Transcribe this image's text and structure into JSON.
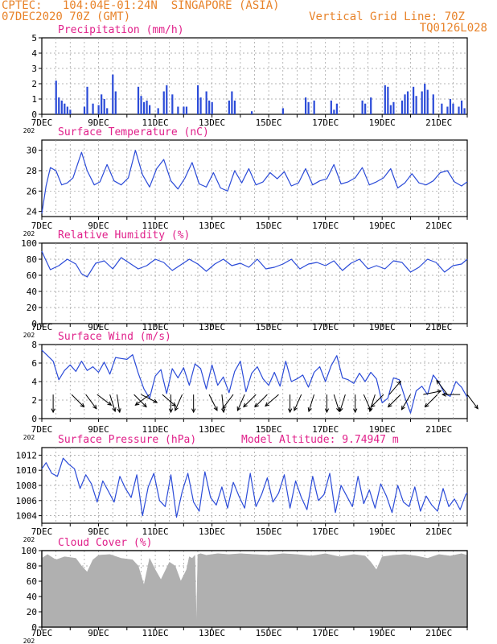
{
  "header": {
    "line1": "CPTEC:   104:04E-01:24N  SINGAPORE (ASIA)",
    "line2": "07DEC2020 70Z (GMT)",
    "grid_note": "Vertical Grid Line: 70Z",
    "run_code": "TQ0126L028",
    "model_altitude": "Model Altitude: 9.74947 m",
    "year_label": "202"
  },
  "colors": {
    "header": "#e8832a",
    "panel_title": "#e0208a",
    "series_line": "#2b4bd8",
    "precip_bar": "#2b4bd8",
    "wind_arrow": "#000000",
    "cloud_fill": "#b0b0b0",
    "grid": "#9a9a9a"
  },
  "chart_data": [
    {
      "type": "bar",
      "title": "Precipitation (mm/h)",
      "x_tick_labels": [
        "7DEC",
        "9DEC",
        "11DEC",
        "13DEC",
        "15DEC",
        "17DEC",
        "19DEC",
        "21DEC"
      ],
      "x_range_days": [
        7,
        22
      ],
      "ylim": [
        0,
        5
      ],
      "y_ticks": [
        0,
        1,
        2,
        3,
        4,
        5
      ],
      "x": [
        7.5,
        7.6,
        7.7,
        7.8,
        7.9,
        8.0,
        8.5,
        8.6,
        8.8,
        9.0,
        9.1,
        9.2,
        9.3,
        9.5,
        9.6,
        10.4,
        10.5,
        10.6,
        10.7,
        10.8,
        11.1,
        11.3,
        11.4,
        11.6,
        11.8,
        12.0,
        12.1,
        12.5,
        12.6,
        12.8,
        12.9,
        13.0,
        13.6,
        13.7,
        13.8,
        14.4,
        15.5,
        16.3,
        16.4,
        16.6,
        17.2,
        17.3,
        17.4,
        18.3,
        18.4,
        18.6,
        19.1,
        19.2,
        19.3,
        19.4,
        19.7,
        19.8,
        19.9,
        20.1,
        20.2,
        20.4,
        20.5,
        20.6,
        20.8,
        21.1,
        21.3,
        21.4,
        21.5,
        21.7,
        21.8,
        21.9
      ],
      "values": [
        2.2,
        1.1,
        0.9,
        0.7,
        0.5,
        0.3,
        0.5,
        1.8,
        0.7,
        0.6,
        1.3,
        1.0,
        0.4,
        2.6,
        1.5,
        1.8,
        1.2,
        0.8,
        0.9,
        0.6,
        0.4,
        1.5,
        1.9,
        1.3,
        0.5,
        0.5,
        0.5,
        1.9,
        1.1,
        1.5,
        0.9,
        0.8,
        0.9,
        1.5,
        0.9,
        0.2,
        0.4,
        1.1,
        0.8,
        0.9,
        0.9,
        0.3,
        0.7,
        0.9,
        0.7,
        1.1,
        1.9,
        1.8,
        0.6,
        0.8,
        0.9,
        1.3,
        1.5,
        1.8,
        1.2,
        1.5,
        2.0,
        1.6,
        1.3,
        0.7,
        0.5,
        1.0,
        0.7,
        0.5,
        0.9,
        0.4
      ]
    },
    {
      "type": "line",
      "title": "Surface Temperature (nC)",
      "x_tick_labels": [
        "7DEC",
        "9DEC",
        "11DEC",
        "13DEC",
        "15DEC",
        "17DEC",
        "19DEC",
        "21DEC"
      ],
      "x_range_days": [
        7,
        22
      ],
      "ylim": [
        23.5,
        31
      ],
      "y_ticks": [
        24,
        26,
        28,
        30
      ],
      "x": [
        7.0,
        7.15,
        7.3,
        7.5,
        7.7,
        7.9,
        8.1,
        8.4,
        8.6,
        8.85,
        9.05,
        9.3,
        9.55,
        9.8,
        10.05,
        10.3,
        10.55,
        10.8,
        11.05,
        11.3,
        11.55,
        11.8,
        12.05,
        12.3,
        12.55,
        12.8,
        13.05,
        13.3,
        13.55,
        13.8,
        14.05,
        14.3,
        14.55,
        14.8,
        15.05,
        15.3,
        15.55,
        15.8,
        16.05,
        16.3,
        16.55,
        16.8,
        17.05,
        17.3,
        17.55,
        17.8,
        18.05,
        18.3,
        18.55,
        18.8,
        19.05,
        19.3,
        19.55,
        19.8,
        20.05,
        20.3,
        20.55,
        20.8,
        21.05,
        21.3,
        21.55,
        21.8,
        22.0
      ],
      "values": [
        23.8,
        26.5,
        28.3,
        28.0,
        26.6,
        26.8,
        27.3,
        29.8,
        28.0,
        26.6,
        26.9,
        28.6,
        27.0,
        26.6,
        27.3,
        30.0,
        27.6,
        26.4,
        28.2,
        29.1,
        27.0,
        26.2,
        27.3,
        28.8,
        26.7,
        26.4,
        27.8,
        26.3,
        26.0,
        28.0,
        26.8,
        28.2,
        26.6,
        26.9,
        27.8,
        27.2,
        27.9,
        26.5,
        26.8,
        28.2,
        26.6,
        27.0,
        27.2,
        28.6,
        26.7,
        26.9,
        27.3,
        28.3,
        26.6,
        26.9,
        27.3,
        28.2,
        26.3,
        26.8,
        27.7,
        26.8,
        26.6,
        27.0,
        27.8,
        28.0,
        26.9,
        26.5,
        26.9
      ]
    },
    {
      "type": "line",
      "title": "Relative Humidity (%)",
      "x_tick_labels": [
        "7DEC",
        "9DEC",
        "11DEC",
        "13DEC",
        "15DEC",
        "17DEC",
        "19DEC",
        "21DEC"
      ],
      "x_range_days": [
        7,
        22
      ],
      "ylim": [
        0,
        100
      ],
      "y_ticks": [
        0,
        20,
        40,
        60,
        80,
        100
      ],
      "x": [
        7.0,
        7.1,
        7.3,
        7.6,
        7.9,
        8.2,
        8.4,
        8.6,
        8.9,
        9.2,
        9.5,
        9.8,
        10.1,
        10.4,
        10.7,
        11.0,
        11.3,
        11.6,
        11.9,
        12.2,
        12.5,
        12.8,
        13.1,
        13.4,
        13.7,
        14.0,
        14.3,
        14.6,
        14.9,
        15.2,
        15.5,
        15.8,
        16.1,
        16.4,
        16.7,
        17.0,
        17.3,
        17.6,
        17.9,
        18.2,
        18.5,
        18.8,
        19.1,
        19.4,
        19.7,
        20.0,
        20.3,
        20.6,
        20.9,
        21.2,
        21.5,
        21.8,
        22.0
      ],
      "values": [
        90,
        82,
        67,
        72,
        80,
        74,
        62,
        58,
        75,
        78,
        68,
        82,
        75,
        68,
        72,
        80,
        76,
        66,
        73,
        80,
        74,
        65,
        74,
        80,
        72,
        75,
        70,
        80,
        68,
        70,
        74,
        80,
        68,
        74,
        76,
        72,
        78,
        66,
        75,
        80,
        68,
        72,
        68,
        78,
        76,
        64,
        70,
        80,
        76,
        64,
        72,
        74,
        80
      ]
    },
    {
      "type": "line",
      "title": "Surface Wind (m/s)",
      "x_tick_labels": [
        "7DEC",
        "9DEC",
        "11DEC",
        "13DEC",
        "15DEC",
        "17DEC",
        "19DEC",
        "21DEC"
      ],
      "x_range_days": [
        7,
        22
      ],
      "ylim": [
        0,
        8
      ],
      "y_ticks": [
        0,
        2,
        4,
        6,
        8
      ],
      "x": [
        7.0,
        7.2,
        7.4,
        7.6,
        7.8,
        8.0,
        8.2,
        8.4,
        8.6,
        8.8,
        9.0,
        9.2,
        9.4,
        9.6,
        9.8,
        10.0,
        10.2,
        10.4,
        10.6,
        10.8,
        11.0,
        11.2,
        11.4,
        11.6,
        11.8,
        12.0,
        12.2,
        12.4,
        12.6,
        12.8,
        13.0,
        13.2,
        13.4,
        13.6,
        13.8,
        14.0,
        14.2,
        14.4,
        14.6,
        14.8,
        15.0,
        15.2,
        15.4,
        15.6,
        15.8,
        16.0,
        16.2,
        16.4,
        16.6,
        16.8,
        17.0,
        17.2,
        17.4,
        17.6,
        17.8,
        18.0,
        18.2,
        18.4,
        18.6,
        18.8,
        19.0,
        19.2,
        19.4,
        19.6,
        19.8,
        20.0,
        20.2,
        20.4,
        20.6,
        20.8,
        21.0,
        21.2,
        21.4,
        21.6,
        21.8,
        22.0
      ],
      "values": [
        7.4,
        6.8,
        6.2,
        4.2,
        5.2,
        5.8,
        5.1,
        6.2,
        5.2,
        5.6,
        5.0,
        6.1,
        4.8,
        6.6,
        6.5,
        6.4,
        6.9,
        4.9,
        3.2,
        2.2,
        4.6,
        5.3,
        2.7,
        5.4,
        4.4,
        5.5,
        3.6,
        5.9,
        5.4,
        3.2,
        5.8,
        3.6,
        4.5,
        2.8,
        5.1,
        6.2,
        2.9,
        4.9,
        5.6,
        4.3,
        3.6,
        5.0,
        3.5,
        6.2,
        4.0,
        4.3,
        4.7,
        3.4,
        5.0,
        5.6,
        4.0,
        5.7,
        6.8,
        4.4,
        4.2,
        3.8,
        4.9,
        4.0,
        5.0,
        4.3,
        1.7,
        2.2,
        4.4,
        4.2,
        2.3,
        0.6,
        3.0,
        3.5,
        2.6,
        4.7,
        3.9,
        2.7,
        2.4,
        4.0,
        3.4,
        2.3
      ]
    },
    {
      "type": "line",
      "title": "Surface Pressure (hPa)",
      "x_tick_labels": [
        "7DEC",
        "9DEC",
        "11DEC",
        "13DEC",
        "15DEC",
        "17DEC",
        "19DEC",
        "21DEC"
      ],
      "x_range_days": [
        7,
        22
      ],
      "ylim": [
        1003,
        1013
      ],
      "y_ticks": [
        1004,
        1006,
        1008,
        1010,
        1012
      ],
      "x": [
        7.0,
        7.15,
        7.35,
        7.55,
        7.75,
        7.95,
        8.15,
        8.35,
        8.55,
        8.75,
        8.95,
        9.15,
        9.35,
        9.55,
        9.75,
        9.95,
        10.15,
        10.35,
        10.55,
        10.75,
        10.95,
        11.15,
        11.35,
        11.55,
        11.75,
        11.95,
        12.15,
        12.35,
        12.55,
        12.75,
        12.95,
        13.15,
        13.35,
        13.55,
        13.75,
        13.95,
        14.15,
        14.35,
        14.55,
        14.75,
        14.95,
        15.15,
        15.35,
        15.55,
        15.75,
        15.95,
        16.15,
        16.35,
        16.55,
        16.75,
        16.95,
        17.15,
        17.35,
        17.55,
        17.75,
        17.95,
        18.15,
        18.35,
        18.55,
        18.75,
        18.95,
        19.15,
        19.35,
        19.55,
        19.75,
        19.95,
        20.15,
        20.35,
        20.55,
        20.75,
        20.95,
        21.15,
        21.35,
        21.55,
        21.75,
        21.95,
        22.0
      ],
      "values": [
        1010.2,
        1011.0,
        1009.6,
        1009.2,
        1011.6,
        1010.8,
        1010.2,
        1007.6,
        1009.4,
        1008.2,
        1005.8,
        1008.6,
        1007.2,
        1005.8,
        1009.2,
        1007.6,
        1006.4,
        1009.4,
        1004.0,
        1007.8,
        1009.6,
        1006.0,
        1005.2,
        1009.4,
        1003.8,
        1007.2,
        1009.6,
        1005.8,
        1004.6,
        1009.8,
        1006.4,
        1005.4,
        1007.8,
        1005.0,
        1008.4,
        1006.6,
        1005.0,
        1009.6,
        1005.2,
        1006.8,
        1009.0,
        1005.8,
        1007.0,
        1009.4,
        1005.0,
        1008.6,
        1006.4,
        1004.8,
        1009.2,
        1006.0,
        1006.8,
        1009.6,
        1004.4,
        1008.0,
        1006.6,
        1005.2,
        1009.2,
        1005.6,
        1007.4,
        1005.0,
        1008.2,
        1006.6,
        1004.4,
        1008.0,
        1005.8,
        1005.2,
        1007.8,
        1004.6,
        1006.6,
        1005.4,
        1004.6,
        1007.6,
        1005.2,
        1006.2,
        1004.8,
        1006.8,
        1007.0
      ]
    },
    {
      "type": "area",
      "title": "Cloud Cover (%)",
      "x_tick_labels": [
        "7DEC",
        "9DEC",
        "11DEC",
        "13DEC",
        "15DEC",
        "17DEC",
        "19DEC",
        "21DEC"
      ],
      "x_range_days": [
        7,
        22
      ],
      "ylim": [
        0,
        100
      ],
      "y_ticks": [
        0,
        20,
        40,
        60,
        80,
        100
      ],
      "x": [
        7.0,
        7.2,
        7.5,
        7.8,
        8.2,
        8.4,
        8.6,
        8.8,
        9.0,
        9.4,
        9.8,
        10.2,
        10.4,
        10.6,
        10.8,
        11.0,
        11.2,
        11.5,
        11.7,
        11.9,
        12.1,
        12.2,
        12.3,
        12.4,
        12.45,
        12.5,
        12.6,
        12.8,
        13.2,
        13.6,
        14.0,
        14.5,
        15.0,
        15.5,
        16.0,
        16.5,
        17.0,
        17.5,
        18.0,
        18.4,
        18.6,
        18.8,
        19.0,
        19.4,
        19.8,
        20.2,
        20.6,
        21.0,
        21.4,
        21.8,
        22.0
      ],
      "values": [
        90,
        95,
        88,
        92,
        90,
        80,
        72,
        88,
        94,
        95,
        90,
        88,
        80,
        55,
        90,
        75,
        62,
        85,
        80,
        60,
        75,
        92,
        90,
        94,
        3,
        95,
        96,
        94,
        96,
        95,
        96,
        95,
        94,
        96,
        95,
        93,
        96,
        92,
        95,
        93,
        85,
        75,
        92,
        94,
        95,
        93,
        90,
        95,
        93,
        96,
        94
      ]
    }
  ],
  "wind_vectors": [
    {
      "day": 7.4,
      "u": 0.0,
      "v": -1.0
    },
    {
      "day": 8.05,
      "u": 0.7,
      "v": -0.7
    },
    {
      "day": 8.55,
      "u": 0.6,
      "v": -0.8
    },
    {
      "day": 8.95,
      "u": 0.8,
      "v": -0.6
    },
    {
      "day": 9.4,
      "u": 0.3,
      "v": -0.95
    },
    {
      "day": 9.65,
      "u": 0.15,
      "v": -1.0
    },
    {
      "day": 10.25,
      "u": 0.7,
      "v": -0.7
    },
    {
      "day": 10.5,
      "u": 0.9,
      "v": -0.45
    },
    {
      "day": 10.8,
      "u": -0.8,
      "v": -0.6
    },
    {
      "day": 11.25,
      "u": 0.75,
      "v": -0.65
    },
    {
      "day": 11.55,
      "u": 0.0,
      "v": -1.0
    },
    {
      "day": 11.95,
      "u": -0.4,
      "v": -0.9
    },
    {
      "day": 12.35,
      "u": 0.0,
      "v": -1.0
    },
    {
      "day": 12.9,
      "u": 0.45,
      "v": -0.9
    },
    {
      "day": 13.35,
      "u": 0.1,
      "v": -1.0
    },
    {
      "day": 13.75,
      "u": -0.6,
      "v": -0.8
    },
    {
      "day": 14.15,
      "u": -0.4,
      "v": -0.9
    },
    {
      "day": 14.55,
      "u": -0.7,
      "v": -0.7
    },
    {
      "day": 14.95,
      "u": -0.7,
      "v": -0.7
    },
    {
      "day": 15.35,
      "u": -0.75,
      "v": -0.65
    },
    {
      "day": 15.75,
      "u": 0.0,
      "v": -1.0
    },
    {
      "day": 16.15,
      "u": -0.4,
      "v": -0.9
    },
    {
      "day": 16.6,
      "u": -0.3,
      "v": -0.95
    },
    {
      "day": 17.05,
      "u": 0.0,
      "v": -1.0
    },
    {
      "day": 17.3,
      "u": 0.3,
      "v": -0.95
    },
    {
      "day": 17.7,
      "u": -0.3,
      "v": -0.95
    },
    {
      "day": 18.05,
      "u": 0.0,
      "v": -1.0
    },
    {
      "day": 18.35,
      "u": 0.4,
      "v": -0.9
    },
    {
      "day": 18.75,
      "u": -0.3,
      "v": -0.95
    },
    {
      "day": 19.05,
      "u": -0.7,
      "v": -0.7
    },
    {
      "day": 19.25,
      "u": 0.65,
      "v": 0.75
    },
    {
      "day": 19.65,
      "u": -0.7,
      "v": -0.7
    },
    {
      "day": 20.0,
      "u": -0.5,
      "v": -0.85
    },
    {
      "day": 20.45,
      "u": 1.0,
      "v": 0.2
    },
    {
      "day": 20.95,
      "u": -0.7,
      "v": -0.7
    },
    {
      "day": 21.3,
      "u": -0.6,
      "v": 0.8
    },
    {
      "day": 21.75,
      "u": -1.0,
      "v": 0.0
    },
    {
      "day": 22.0,
      "u": 0.6,
      "v": -0.8
    }
  ]
}
